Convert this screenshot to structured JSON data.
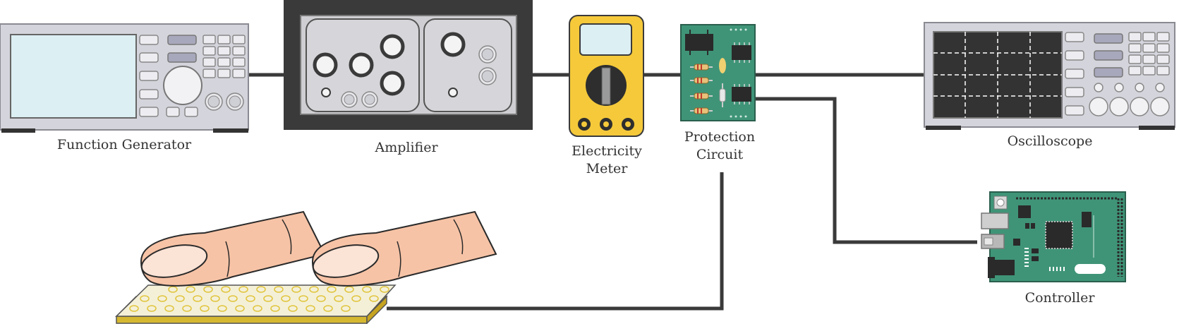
{
  "labels": {
    "function_generator": "Function Generator",
    "amplifier": "Amplifier",
    "electricity_meter_line1": "Electricity",
    "electricity_meter_line2": "Meter",
    "protection_circuit_line1": "Protection",
    "protection_circuit_line2": "Circuit",
    "oscilloscope": "Oscilloscope",
    "controller": "Controller"
  },
  "colors": {
    "wire": "#3a3a3a",
    "instrument_body": "#d4d4dc",
    "screen_light": "#dcefF2",
    "screen_dark": "#333333",
    "amplifier_frame": "#3a3a3a",
    "meter_yellow": "#f5c93a",
    "pcb_green": "#3f9478",
    "skin": "#f7c3a6",
    "pad_yellow": "#f0e070"
  },
  "icons": {
    "function_generator": "function-generator-icon",
    "amplifier": "amplifier-icon",
    "electricity_meter": "multimeter-icon",
    "protection_circuit": "circuit-board-icon",
    "oscilloscope": "oscilloscope-icon",
    "controller": "microcontroller-board-icon",
    "fingers": "fingers-touching-pad-icon"
  }
}
